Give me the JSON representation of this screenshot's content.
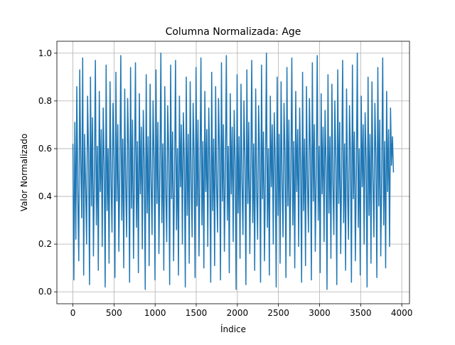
{
  "chart_data": {
    "type": "line",
    "title": "Columna Normalizada: Age",
    "xlabel": "Índice",
    "ylabel": "Valor Normalizado",
    "xlim": [
      -195,
      4094
    ],
    "ylim": [
      -0.05,
      1.05
    ],
    "xticks": [
      0,
      500,
      1000,
      1500,
      2000,
      2500,
      3000,
      3500,
      4000
    ],
    "xtick_labels": [
      "0",
      "500",
      "1000",
      "1500",
      "2000",
      "2500",
      "3000",
      "3500",
      "4000"
    ],
    "yticks": [
      0.0,
      0.2,
      0.4,
      0.6,
      0.8,
      1.0
    ],
    "ytick_labels": [
      "0.0",
      "0.2",
      "0.4",
      "0.6",
      "0.8",
      "1.0"
    ],
    "grid": true,
    "series": [
      {
        "color": "#1f77b4",
        "x_range": [
          0,
          3899
        ],
        "y_range": [
          0.0,
          1.0
        ],
        "values": [
          0.62,
          0.05,
          0.71,
          0.22,
          0.86,
          0.4,
          0.13,
          0.93,
          0.55,
          0.31,
          0.98,
          0.07,
          0.66,
          0.44,
          0.2,
          0.82,
          0.58,
          0.03,
          0.9,
          0.36,
          0.73,
          0.15,
          0.49,
          0.97,
          0.28,
          0.61,
          0.09,
          0.84,
          0.42,
          0.68,
          0.19,
          0.77,
          0.53,
          0.02,
          0.95,
          0.34,
          0.6,
          0.12,
          0.88,
          0.47,
          0.25,
          0.79,
          0.57,
          0.06,
          0.92,
          0.38,
          0.7,
          0.17,
          0.51,
          0.99,
          0.3,
          0.64,
          0.1,
          0.85,
          0.45,
          0.23,
          0.81,
          0.59,
          0.04,
          0.94,
          0.35,
          0.72,
          0.14,
          0.5,
          0.96,
          0.27,
          0.63,
          0.08,
          0.83,
          0.41,
          0.69,
          0.18,
          0.76,
          0.54,
          0.01,
          0.91,
          0.33,
          0.65,
          0.11,
          0.87,
          0.46,
          0.24,
          0.8,
          0.56,
          0.05,
          0.93,
          0.37,
          0.71,
          0.16,
          0.52,
          1.0,
          0.29,
          0.62,
          0.09,
          0.86,
          0.43,
          0.21,
          0.78,
          0.58,
          0.03,
          0.95,
          0.39,
          0.67,
          0.13,
          0.48,
          0.97,
          0.26,
          0.6,
          0.07,
          0.82,
          0.44,
          0.7,
          0.2,
          0.75,
          0.55,
          0.02,
          0.9,
          0.32,
          0.66,
          0.12,
          0.88,
          0.47,
          0.23,
          0.79,
          0.57,
          0.06,
          0.94,
          0.36,
          0.72,
          0.15,
          0.5,
          0.98,
          0.28,
          0.63,
          0.1,
          0.84,
          0.42,
          0.68,
          0.19,
          0.77,
          0.53,
          0.04,
          0.92,
          0.34,
          0.64,
          0.11,
          0.86,
          0.45,
          0.25,
          0.81,
          0.59,
          0.05,
          0.96,
          0.38,
          0.7,
          0.17,
          0.51,
          0.99,
          0.3,
          0.61,
          0.08,
          0.83,
          0.41,
          0.69,
          0.21,
          0.76,
          0.54,
          0.01,
          0.91,
          0.33,
          0.65,
          0.14,
          0.87,
          0.46,
          0.24,
          0.8,
          0.56,
          0.03,
          0.93,
          0.37,
          0.71,
          0.16,
          0.52,
          0.97,
          0.29,
          0.62,
          0.09,
          0.85,
          0.43,
          0.22,
          0.78,
          0.58,
          0.04,
          0.95,
          0.39,
          0.67,
          0.13,
          0.49,
          1.0,
          0.27,
          0.6,
          0.07,
          0.82,
          0.44,
          0.7,
          0.2,
          0.75,
          0.55,
          0.02,
          0.9,
          0.32,
          0.66,
          0.12,
          0.88,
          0.47,
          0.23,
          0.79,
          0.57,
          0.06,
          0.94,
          0.36,
          0.72,
          0.15,
          0.5,
          0.98,
          0.28,
          0.63,
          0.1,
          0.84,
          0.42,
          0.68,
          0.19,
          0.77,
          0.53,
          0.04,
          0.92,
          0.34,
          0.64,
          0.11,
          0.86,
          0.45,
          0.25,
          0.81,
          0.59,
          0.05,
          0.96,
          0.38,
          0.7,
          0.17,
          0.51,
          0.99,
          0.3,
          0.61,
          0.08,
          0.83,
          0.41,
          0.69,
          0.21,
          0.76,
          0.54,
          0.01,
          0.91,
          0.33,
          0.65,
          0.14,
          0.87,
          0.46,
          0.24,
          0.8,
          0.56,
          0.03,
          0.93,
          0.37,
          0.71,
          0.16,
          0.52,
          0.97,
          0.29,
          0.62,
          0.09,
          0.85,
          0.43,
          0.22,
          0.78,
          0.58,
          0.04,
          0.95,
          0.39,
          0.67,
          0.13,
          0.49,
          1.0,
          0.27,
          0.6,
          0.07,
          0.82,
          0.44,
          0.7,
          0.2,
          0.75,
          0.55,
          0.02,
          0.9,
          0.32,
          0.66,
          0.12,
          0.88,
          0.47,
          0.23,
          0.79,
          0.57,
          0.06,
          0.94,
          0.36,
          0.72,
          0.15,
          0.5,
          0.98,
          0.28,
          0.63,
          0.1,
          0.84,
          0.42,
          0.68,
          0.19,
          0.77,
          0.53,
          0.65,
          0.5
        ]
      }
    ]
  }
}
